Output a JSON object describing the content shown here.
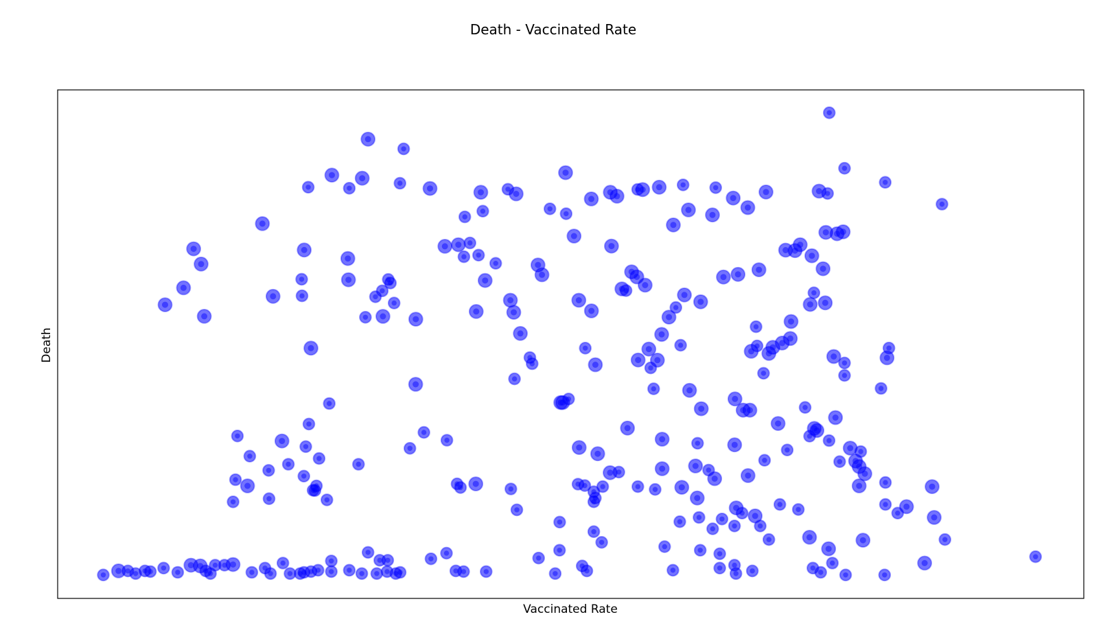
{
  "chart_data": {
    "type": "scatter",
    "title": "Death - Vaccinated Rate",
    "xlabel": "Vaccinated Rate",
    "ylabel": "Death",
    "xlim": [
      0,
      100
    ],
    "ylim": [
      0,
      100
    ],
    "xticks_visible": false,
    "yticks_visible": false,
    "grid": false,
    "marker_color": "#0000ff",
    "marker_alpha": 0.55,
    "points": [
      [
        4.45,
        4.61,
        3
      ],
      [
        5.93,
        5.41,
        4
      ],
      [
        6.84,
        5.41,
        3
      ],
      [
        7.6,
        4.89,
        3
      ],
      [
        8.51,
        5.41,
        3
      ],
      [
        9.04,
        5.27,
        3
      ],
      [
        10.33,
        5.97,
        3
      ],
      [
        11.7,
        5.13,
        3
      ],
      [
        12.99,
        6.53,
        4
      ],
      [
        13.9,
        6.39,
        4
      ],
      [
        14.43,
        5.41,
        3
      ],
      [
        14.89,
        4.89,
        3
      ],
      [
        15.35,
        6.53,
        3
      ],
      [
        16.26,
        6.53,
        3
      ],
      [
        17.09,
        6.67,
        4
      ],
      [
        18.92,
        5.13,
        3
      ],
      [
        20.21,
        5.97,
        3
      ],
      [
        20.74,
        4.89,
        3
      ],
      [
        21.95,
        6.95,
        3
      ],
      [
        22.64,
        4.89,
        3
      ],
      [
        23.63,
        4.89,
        3
      ],
      [
        24.01,
        5.13,
        3
      ],
      [
        24.69,
        5.27,
        3
      ],
      [
        25.38,
        5.55,
        3
      ],
      [
        26.67,
        5.27,
        3
      ],
      [
        26.67,
        7.37,
        3
      ],
      [
        28.42,
        5.55,
        3
      ],
      [
        29.64,
        4.89,
        3
      ],
      [
        30.25,
        9.06,
        3
      ],
      [
        31.1,
        4.89,
        3
      ],
      [
        32.11,
        5.27,
        3
      ],
      [
        31.39,
        7.51,
        3
      ],
      [
        32.17,
        7.51,
        3
      ],
      [
        32.95,
        4.89,
        3
      ],
      [
        33.38,
        5.13,
        3
      ],
      [
        36.38,
        7.79,
        3
      ],
      [
        37.89,
        8.9,
        3
      ],
      [
        38.8,
        5.41,
        3
      ],
      [
        39.56,
        5.27,
        3
      ],
      [
        41.76,
        5.27,
        3
      ],
      [
        48.49,
        4.89,
        3
      ],
      [
        46.87,
        7.93,
        3
      ],
      [
        48.91,
        9.48,
        3
      ],
      [
        51.12,
        6.39,
        3
      ],
      [
        51.57,
        5.41,
        3
      ],
      [
        53.02,
        11.02,
        3
      ],
      [
        59.15,
        10.18,
        3
      ],
      [
        59.96,
        5.55,
        3
      ],
      [
        62.62,
        9.48,
        3
      ],
      [
        64.52,
        5.97,
        3
      ],
      [
        64.52,
        8.78,
        3
      ],
      [
        65.96,
        6.53,
        3
      ],
      [
        67.7,
        5.41,
        3
      ],
      [
        66.1,
        4.89,
        3
      ],
      [
        73.6,
        5.97,
        3
      ],
      [
        74.36,
        5.13,
        3
      ],
      [
        75.5,
        6.95,
        3
      ],
      [
        76.79,
        4.61,
        3
      ],
      [
        80.59,
        4.61,
        3
      ],
      [
        63.83,
        13.69,
        3
      ],
      [
        60.63,
        15.09,
        3
      ],
      [
        62.5,
        15.93,
        3
      ],
      [
        65.96,
        14.25,
        3
      ],
      [
        68.47,
        14.25,
        3
      ],
      [
        69.31,
        11.58,
        3
      ],
      [
        73.27,
        12.02,
        4
      ],
      [
        72.18,
        17.49,
        3
      ],
      [
        70.38,
        18.48,
        3
      ],
      [
        75.13,
        9.76,
        4
      ],
      [
        78.48,
        11.44,
        4
      ],
      [
        78.11,
        22.13,
        4
      ],
      [
        78.66,
        24.52,
        4
      ],
      [
        78.11,
        25.92,
        4
      ],
      [
        76.21,
        26.9,
        3
      ],
      [
        77.76,
        27.02,
        4
      ],
      [
        81.86,
        16.78,
        3
      ],
      [
        80.67,
        22.8,
        3
      ],
      [
        85.22,
        21.98,
        4
      ],
      [
        85.42,
        15.93,
        4
      ],
      [
        80.67,
        18.48,
        3
      ],
      [
        82.72,
        18.04,
        4
      ],
      [
        80.82,
        47.32,
        4
      ],
      [
        80.24,
        41.29,
        3
      ],
      [
        81.01,
        49.23,
        3
      ],
      [
        78.26,
        28.88,
        3
      ],
      [
        77.24,
        29.56,
        4
      ],
      [
        73.74,
        33.43,
        4
      ],
      [
        73.99,
        33.02,
        4
      ],
      [
        73.28,
        31.9,
        3
      ],
      [
        75.8,
        35.56,
        4
      ],
      [
        75.18,
        31.04,
        3
      ],
      [
        76.68,
        43.84,
        3
      ],
      [
        75.63,
        47.57,
        4
      ],
      [
        76.68,
        46.3,
        3
      ],
      [
        72.84,
        37.56,
        3
      ],
      [
        68.79,
        44.28,
        3
      ],
      [
        69.7,
        49.38,
        4
      ],
      [
        68.16,
        49.65,
        3
      ],
      [
        68.06,
        53.43,
        3
      ],
      [
        60.71,
        49.79,
        3
      ],
      [
        57.79,
        45.33,
        3
      ],
      [
        61.58,
        40.92,
        4
      ],
      [
        62.72,
        37.3,
        4
      ],
      [
        66.01,
        39.23,
        4
      ],
      [
        66.8,
        37.02,
        4
      ],
      [
        65.97,
        30.2,
        4
      ],
      [
        68.89,
        27.17,
        3
      ],
      [
        67.28,
        24.15,
        4
      ],
      [
        70.21,
        34.4,
        4
      ],
      [
        71.1,
        29.19,
        3
      ],
      [
        67.46,
        37.02,
        4
      ],
      [
        64.03,
        23.55,
        4
      ],
      [
        66.13,
        17.8,
        4
      ],
      [
        67.97,
        16.22,
        4
      ],
      [
        66.7,
        16.78,
        3
      ],
      [
        62.33,
        19.74,
        4
      ],
      [
        60.82,
        21.85,
        4
      ],
      [
        63.44,
        25.23,
        3
      ],
      [
        64.74,
        15.62,
        3
      ],
      [
        58.45,
        46.86,
        4
      ],
      [
        58.91,
        31.31,
        4
      ],
      [
        58.08,
        41.21,
        3
      ],
      [
        58.91,
        25.5,
        4
      ],
      [
        58.23,
        21.43,
        3
      ],
      [
        52.63,
        28.45,
        4
      ],
      [
        53.84,
        24.73,
        4
      ],
      [
        55.53,
        33.49,
        4
      ],
      [
        56.57,
        46.88,
        4
      ],
      [
        57.61,
        49.03,
        4
      ],
      [
        56.54,
        21.99,
        3
      ],
      [
        54.69,
        24.85,
        3
      ],
      [
        52.25,
        20.97,
        3
      ],
      [
        52.4,
        19.74,
        3
      ],
      [
        52.25,
        19.0,
        3
      ],
      [
        52.25,
        13.13,
        3
      ],
      [
        52.4,
        45.95,
        4
      ],
      [
        49.22,
        38.52,
        4
      ],
      [
        50.82,
        29.68,
        4
      ],
      [
        49.03,
        38.52,
        4
      ],
      [
        49.79,
        39.22,
        3
      ],
      [
        48.92,
        15.01,
        3
      ],
      [
        53.12,
        21.99,
        3
      ],
      [
        52.02,
        56.55,
        4
      ],
      [
        50.79,
        58.64,
        4
      ],
      [
        51.42,
        49.22,
        3
      ],
      [
        44.52,
        43.17,
        3
      ],
      [
        44.12,
        58.64,
        4
      ],
      [
        46.02,
        47.37,
        3
      ],
      [
        40.79,
        56.43,
        4
      ],
      [
        34.89,
        42.11,
        4
      ],
      [
        34.33,
        29.52,
        3
      ],
      [
        35.69,
        32.64,
        3
      ],
      [
        37.93,
        31.1,
        3
      ],
      [
        38.92,
        22.53,
        3
      ],
      [
        39.26,
        21.81,
        3
      ],
      [
        40.75,
        22.53,
        4
      ],
      [
        44.17,
        21.53,
        3
      ],
      [
        46.24,
        46.15,
        3
      ],
      [
        44.75,
        17.42,
        3
      ],
      [
        50.71,
        22.47,
        3
      ],
      [
        51.37,
        22.19,
        3
      ],
      [
        62.16,
        26.05,
        4
      ],
      [
        62.36,
        30.51,
        3
      ],
      [
        26.47,
        38.33,
        3
      ],
      [
        24.48,
        34.29,
        3
      ],
      [
        24.18,
        29.85,
        3
      ],
      [
        24.89,
        21.27,
        3
      ],
      [
        25.22,
        22.13,
        3
      ],
      [
        21.86,
        30.96,
        4
      ],
      [
        20.99,
        59.41,
        4
      ],
      [
        18.72,
        27.98,
        3
      ],
      [
        17.52,
        31.94,
        3
      ],
      [
        17.33,
        23.35,
        3
      ],
      [
        18.5,
        22.13,
        4
      ],
      [
        10.47,
        57.75,
        4
      ],
      [
        12.27,
        61.08,
        4
      ],
      [
        13.98,
        65.75,
        4
      ],
      [
        14.29,
        55.48,
        4
      ],
      [
        13.25,
        68.75,
        4
      ],
      [
        24.68,
        49.22,
        4
      ],
      [
        24.03,
        68.51,
        4
      ],
      [
        28.34,
        62.66,
        4
      ],
      [
        39.05,
        69.55,
        4
      ],
      [
        41.66,
        62.52,
        4
      ],
      [
        37.74,
        69.24,
        4
      ],
      [
        28.28,
        66.84,
        4
      ],
      [
        39.59,
        67.19,
        3
      ],
      [
        31.7,
        55.46,
        4
      ],
      [
        34.9,
        54.91,
        4
      ],
      [
        44.45,
        56.26,
        4
      ],
      [
        45.09,
        52.1,
        4
      ],
      [
        23.78,
        62.77,
        3
      ],
      [
        32.43,
        62.03,
        3
      ],
      [
        32.79,
        58.08,
        3
      ],
      [
        31.63,
        60.48,
        3
      ],
      [
        30.97,
        59.32,
        3
      ],
      [
        29.99,
        55.29,
        3
      ],
      [
        23.81,
        59.5,
        3
      ],
      [
        42.69,
        65.9,
        3
      ],
      [
        46.81,
        65.57,
        4
      ],
      [
        47.2,
        63.65,
        4
      ],
      [
        54.99,
        60.87,
        4
      ],
      [
        55.39,
        60.54,
        3
      ],
      [
        55.93,
        64.23,
        4
      ],
      [
        56.44,
        63.23,
        4
      ],
      [
        57.25,
        61.6,
        4
      ],
      [
        64.88,
        63.2,
        4
      ],
      [
        66.3,
        63.73,
        4
      ],
      [
        68.34,
        64.63,
        4
      ],
      [
        70.94,
        68.49,
        4
      ],
      [
        71.86,
        68.39,
        4
      ],
      [
        72.36,
        69.56,
        4
      ],
      [
        73.5,
        67.38,
        4
      ],
      [
        74.59,
        64.83,
        4
      ],
      [
        75.95,
        71.72,
        4
      ],
      [
        74.86,
        71.99,
        4
      ],
      [
        76.55,
        72.09,
        4
      ],
      [
        73.34,
        57.81,
        4
      ],
      [
        73.7,
        60.09,
        3
      ],
      [
        74.8,
        58.13,
        4
      ],
      [
        71.47,
        54.45,
        4
      ],
      [
        71.4,
        51.11,
        4
      ],
      [
        70.61,
        50.22,
        4
      ],
      [
        69.31,
        48.18,
        4
      ],
      [
        67.59,
        48.59,
        4
      ],
      [
        62.66,
        58.33,
        4
      ],
      [
        61.08,
        59.68,
        4
      ],
      [
        60.25,
        57.21,
        3
      ],
      [
        58.86,
        51.91,
        4
      ],
      [
        59.57,
        55.32,
        4
      ],
      [
        53.97,
        69.28,
        4
      ],
      [
        47.97,
        76.61,
        3
      ],
      [
        49.55,
        75.66,
        3
      ],
      [
        50.32,
        71.25,
        4
      ],
      [
        41.02,
        67.51,
        3
      ],
      [
        40.18,
        69.9,
        3
      ],
      [
        39.68,
        75.04,
        3
      ],
      [
        32.22,
        62.73,
        3
      ],
      [
        23.99,
        24.05,
        3
      ],
      [
        20.56,
        25.18,
        3
      ],
      [
        22.48,
        26.38,
        3
      ],
      [
        25.48,
        27.52,
        3
      ],
      [
        29.32,
        26.38,
        3
      ],
      [
        26.24,
        19.38,
        3
      ],
      [
        20.6,
        19.61,
        3
      ],
      [
        25.07,
        21.22,
        3
      ],
      [
        17.1,
        18.99,
        3
      ],
      [
        19.95,
        73.7,
        4
      ],
      [
        26.72,
        83.24,
        4
      ],
      [
        30.25,
        90.31,
        4
      ],
      [
        33.72,
        88.41,
        3
      ],
      [
        41.43,
        76.16,
        3
      ],
      [
        56.52,
        80.42,
        3
      ],
      [
        60.0,
        73.44,
        4
      ],
      [
        61.47,
        76.4,
        4
      ],
      [
        63.81,
        75.41,
        4
      ],
      [
        67.26,
        76.85,
        4
      ],
      [
        76.68,
        84.59,
        3
      ],
      [
        80.65,
        81.82,
        3
      ],
      [
        86.18,
        77.53,
        3
      ],
      [
        69.03,
        79.92,
        4
      ],
      [
        49.5,
        83.73,
        4
      ],
      [
        52.01,
        78.56,
        4
      ],
      [
        53.86,
        79.87,
        4
      ],
      [
        58.62,
        80.86,
        4
      ],
      [
        57.01,
        80.39,
        4
      ],
      [
        54.51,
        79.1,
        4
      ],
      [
        44.68,
        79.56,
        4
      ],
      [
        36.29,
        80.62,
        4
      ],
      [
        33.36,
        81.65,
        3
      ],
      [
        28.42,
        80.66,
        3
      ],
      [
        24.42,
        80.86,
        3
      ],
      [
        41.24,
        79.86,
        4
      ],
      [
        43.88,
        80.46,
        3
      ],
      [
        60.95,
        81.32,
        3
      ],
      [
        64.13,
        80.78,
        3
      ],
      [
        65.83,
        78.73,
        4
      ],
      [
        74.2,
        80.1,
        4
      ],
      [
        75.03,
        79.64,
        3
      ],
      [
        84.49,
        6.95,
        4
      ],
      [
        86.47,
        11.58,
        3
      ],
      [
        95.3,
        8.21,
        3
      ],
      [
        75.2,
        95.51,
        3
      ],
      [
        29.68,
        82.63,
        4
      ]
    ]
  }
}
